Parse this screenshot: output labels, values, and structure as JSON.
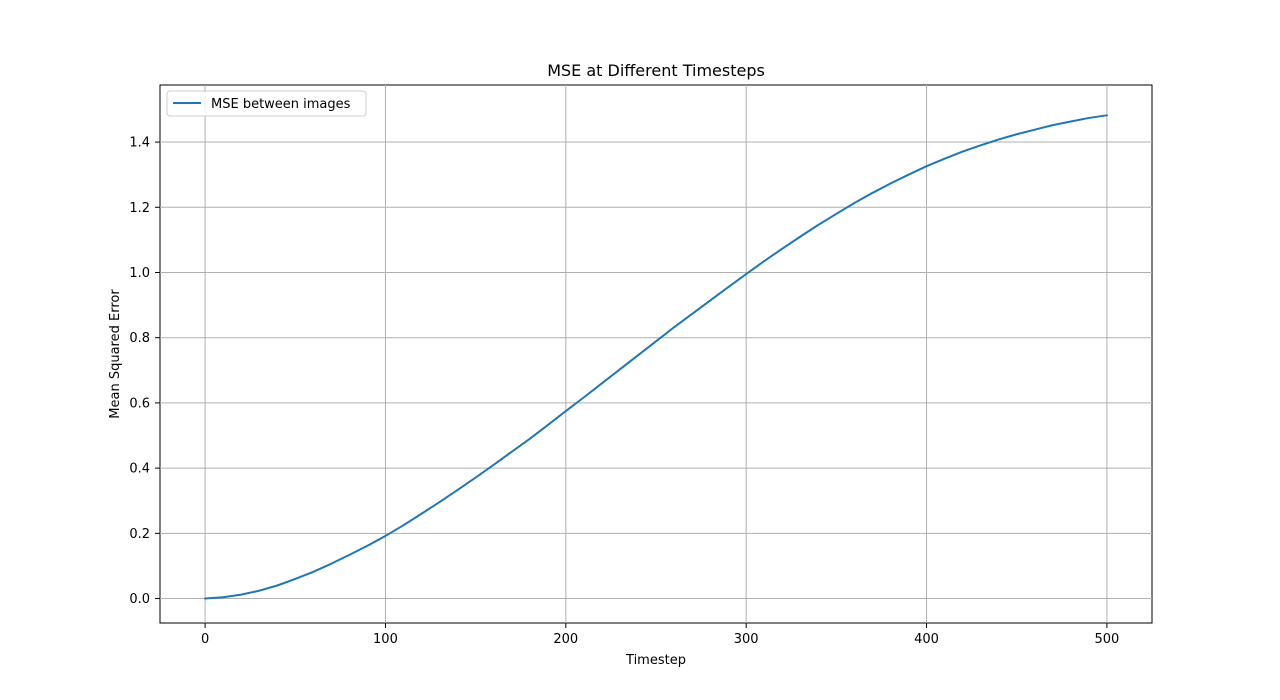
{
  "chart_data": {
    "type": "line",
    "title": "MSE at Different Timesteps",
    "xlabel": "Timestep",
    "ylabel": "Mean Squared Error",
    "xlim": [
      -25,
      525
    ],
    "ylim": [
      -0.075,
      1.575
    ],
    "xticks": [
      0,
      100,
      200,
      300,
      400,
      500
    ],
    "yticks": [
      0.0,
      0.2,
      0.4,
      0.6,
      0.8,
      1.0,
      1.2,
      1.4
    ],
    "xtick_labels": [
      "0",
      "100",
      "200",
      "300",
      "400",
      "500"
    ],
    "ytick_labels": [
      "0.0",
      "0.2",
      "0.4",
      "0.6",
      "0.8",
      "1.0",
      "1.2",
      "1.4"
    ],
    "grid": true,
    "legend_position": "top-left",
    "series": [
      {
        "name": "MSE between images",
        "color": "#1f77b4",
        "x": [
          0,
          10,
          20,
          30,
          40,
          50,
          60,
          70,
          80,
          90,
          100,
          110,
          120,
          130,
          140,
          150,
          160,
          170,
          180,
          190,
          200,
          210,
          220,
          230,
          240,
          250,
          260,
          270,
          280,
          290,
          300,
          310,
          320,
          330,
          340,
          350,
          360,
          370,
          380,
          390,
          400,
          410,
          420,
          430,
          440,
          450,
          460,
          470,
          480,
          490,
          500
        ],
        "y": [
          0.0,
          0.004,
          0.012,
          0.024,
          0.04,
          0.06,
          0.082,
          0.107,
          0.134,
          0.162,
          0.192,
          0.225,
          0.26,
          0.296,
          0.333,
          0.371,
          0.41,
          0.45,
          0.49,
          0.532,
          0.575,
          0.617,
          0.66,
          0.703,
          0.746,
          0.789,
          0.832,
          0.873,
          0.914,
          0.955,
          0.995,
          1.035,
          1.073,
          1.11,
          1.146,
          1.18,
          1.213,
          1.244,
          1.273,
          1.3,
          1.326,
          1.349,
          1.371,
          1.39,
          1.408,
          1.424,
          1.438,
          1.452,
          1.463,
          1.474,
          1.482
        ]
      }
    ]
  }
}
